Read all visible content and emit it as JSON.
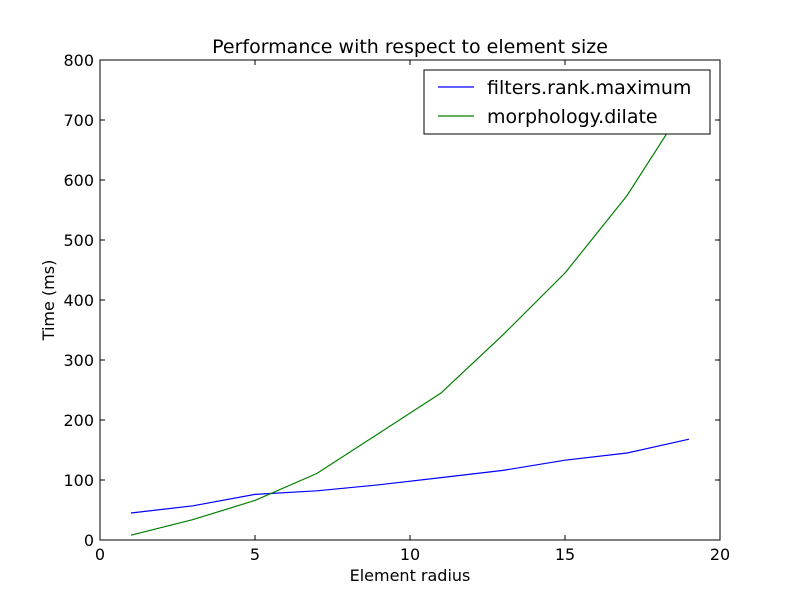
{
  "chart_data": {
    "type": "line",
    "title": "Performance with respect to element size",
    "xlabel": "Element radius",
    "ylabel": "Time (ms)",
    "xlim": [
      0,
      20
    ],
    "ylim": [
      0,
      800
    ],
    "xticks": [
      0,
      5,
      10,
      15,
      20
    ],
    "yticks": [
      0,
      100,
      200,
      300,
      400,
      500,
      600,
      700,
      800
    ],
    "grid": false,
    "legend_position": "top-right",
    "series": [
      {
        "name": "filters.rank.maximum",
        "color": "#0000ff",
        "x": [
          1,
          3,
          5,
          7,
          9,
          11,
          13,
          15,
          17,
          19
        ],
        "y": [
          45,
          57,
          76,
          82,
          92,
          104,
          116,
          133,
          145,
          168
        ]
      },
      {
        "name": "morphology.dilate",
        "color": "#008000",
        "x": [
          1,
          3,
          5,
          7,
          9,
          11,
          13,
          15,
          17,
          19
        ],
        "y": [
          8,
          34,
          66,
          111,
          178,
          245,
          342,
          445,
          574,
          735
        ]
      }
    ]
  }
}
